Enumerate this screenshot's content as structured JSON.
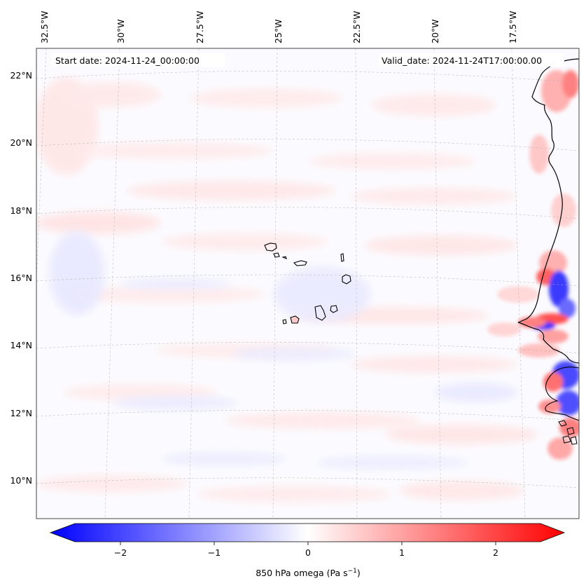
{
  "map": {
    "start_date": "Start date: 2024-11-24_00:00:00",
    "valid_date": "Valid_date: 2024-11-24T17:00:00.00",
    "longitude_labels": [
      "32.5°W",
      "30°W",
      "27.5°W",
      "25°W",
      "22.5°W",
      "20°W",
      "17.5°W"
    ],
    "latitude_labels": [
      "22°N",
      "20°N",
      "18°N",
      "16°N",
      "14°N",
      "12°N",
      "10°N"
    ],
    "colors": {
      "negative": "#0000ff",
      "zero": "#ffffff",
      "positive": "#ff0000",
      "coastline": "#000000",
      "gridline": "#b0b0b0"
    }
  },
  "colorbar": {
    "title_prefix": "850 hPa omega (Pa s",
    "title_exp": "−1",
    "title_suffix": ")",
    "ticks": [
      "−2",
      "−1",
      "0",
      "1",
      "2"
    ],
    "tick_values": [
      -2,
      -1,
      0,
      1,
      2
    ],
    "range": [
      -2.75,
      2.75
    ],
    "extend": "both"
  }
}
